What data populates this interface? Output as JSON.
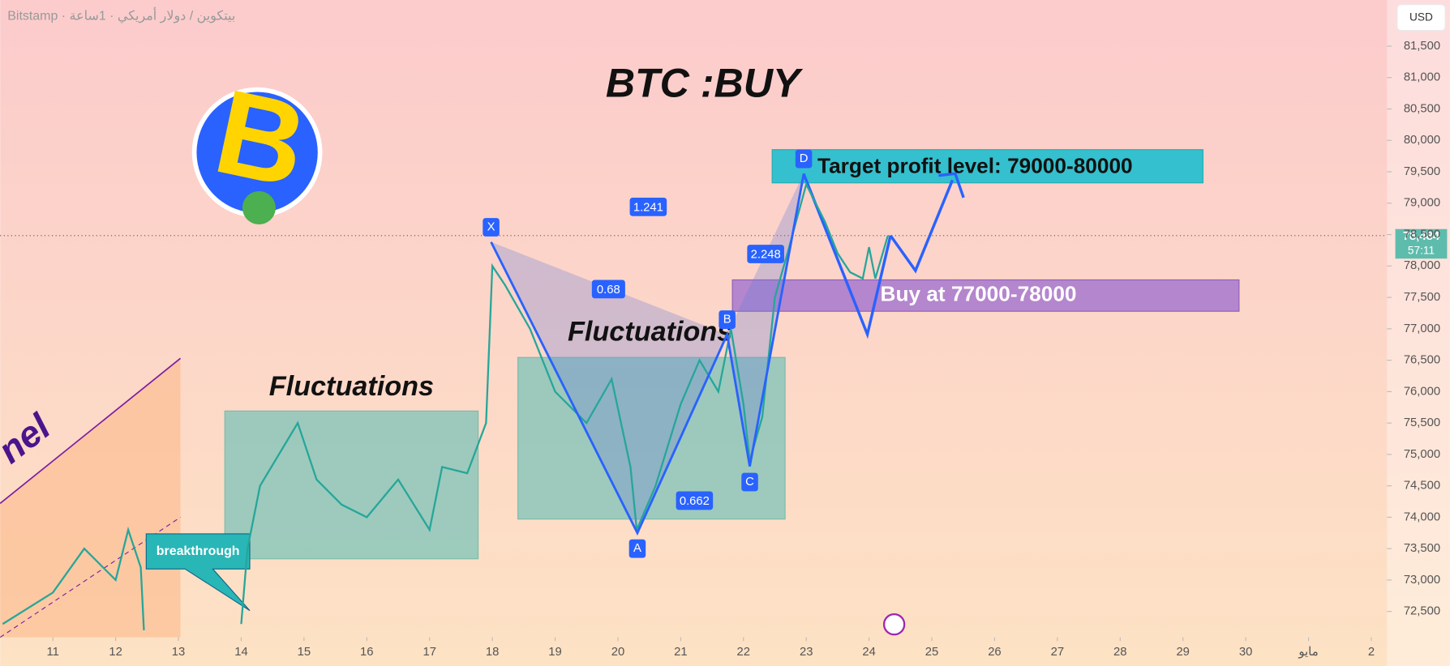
{
  "header": "Bitstamp · بيتكوين / دولار أمريكي · 1ساعة",
  "currency": "USD",
  "chart_data": {
    "type": "line",
    "title": "BTC :BUY",
    "x": [
      10.2,
      11,
      11.5,
      12,
      12.2,
      12.4,
      12.45,
      13,
      14,
      14.1,
      14.3,
      14.9,
      15.2,
      15.6,
      16,
      16.5,
      17,
      17.2,
      17.6,
      17.9,
      18,
      18.2,
      18.6,
      19,
      19.5,
      19.9,
      20.2,
      20.3,
      20.6,
      21,
      21.3,
      21.6,
      21.8,
      22,
      22.1,
      22.3,
      22.5,
      22.7,
      23,
      23.3,
      23.5,
      23.7,
      23.9,
      24,
      24.1,
      24.3
    ],
    "series": [
      {
        "name": "BTC/USD",
        "color": "#26a69a",
        "values": [
          72300,
          72800,
          73500,
          73000,
          73800,
          73200,
          72200,
          null,
          72300,
          73500,
          74500,
          75500,
          74600,
          74200,
          74000,
          74600,
          73800,
          74800,
          74700,
          75500,
          78000,
          77700,
          77000,
          76000,
          75500,
          76200,
          74800,
          73800,
          74500,
          75800,
          76500,
          76000,
          77000,
          75800,
          74900,
          75600,
          77500,
          78200,
          79300,
          78700,
          78200,
          77900,
          77800,
          78300,
          77800,
          78484
        ]
      }
    ],
    "xlim": [
      10.16,
      32.25
    ],
    "xticks": [
      11,
      12,
      13,
      14,
      15,
      16,
      17,
      18,
      19,
      20,
      21,
      22,
      23,
      24,
      25,
      26,
      27,
      28,
      29,
      30,
      {
        "value": 31,
        "label": "مايو"
      },
      {
        "value": 32,
        "label": "2"
      }
    ],
    "ylim": [
      72088,
      82235
    ],
    "yticks": [
      {
        "value": 72500,
        "label": "72,500"
      },
      {
        "value": 73000,
        "label": "73,000"
      },
      {
        "value": 73500,
        "label": "73,500"
      },
      {
        "value": 74000,
        "label": "74,000"
      },
      {
        "value": 74500,
        "label": "74,500"
      },
      {
        "value": 75000,
        "label": "75,000"
      },
      {
        "value": 75500,
        "label": "75,500"
      },
      {
        "value": 76000,
        "label": "76,000"
      },
      {
        "value": 76500,
        "label": "76,500"
      },
      {
        "value": 77000,
        "label": "77,000"
      },
      {
        "value": 77500,
        "label": "77,500"
      },
      {
        "value": 78000,
        "label": "78,000"
      },
      {
        "value": 78500,
        "label": "78,500"
      },
      {
        "value": 79000,
        "label": "79,000"
      },
      {
        "value": 79500,
        "label": "79,500"
      },
      {
        "value": 80000,
        "label": "80,000"
      },
      {
        "value": 80500,
        "label": "80,500"
      },
      {
        "value": 81000,
        "label": "81,000"
      },
      {
        "value": 81500,
        "label": "81,500"
      }
    ],
    "last_price": {
      "value": 78484,
      "label": "78,484"
    },
    "countdown": "57:11",
    "pattern": {
      "labels": [
        "X",
        "A",
        "B",
        "C",
        "D"
      ],
      "x": [
        17.98,
        20.31,
        21.74,
        22.1,
        22.96
      ],
      "y": [
        78382,
        73750,
        76910,
        74810,
        79470
      ]
    },
    "annotations": {
      "target": "Target profit level: 79000-80000",
      "buy": "Buy at 77000-78000",
      "fluct1": "Fluctuations",
      "fluct2": "Fluctuations",
      "breakthrough": "breakthrough",
      "channel": "nel",
      "r1": "1.241",
      "r2": "0.68",
      "r3": "0.662",
      "r4": "2.248"
    }
  }
}
